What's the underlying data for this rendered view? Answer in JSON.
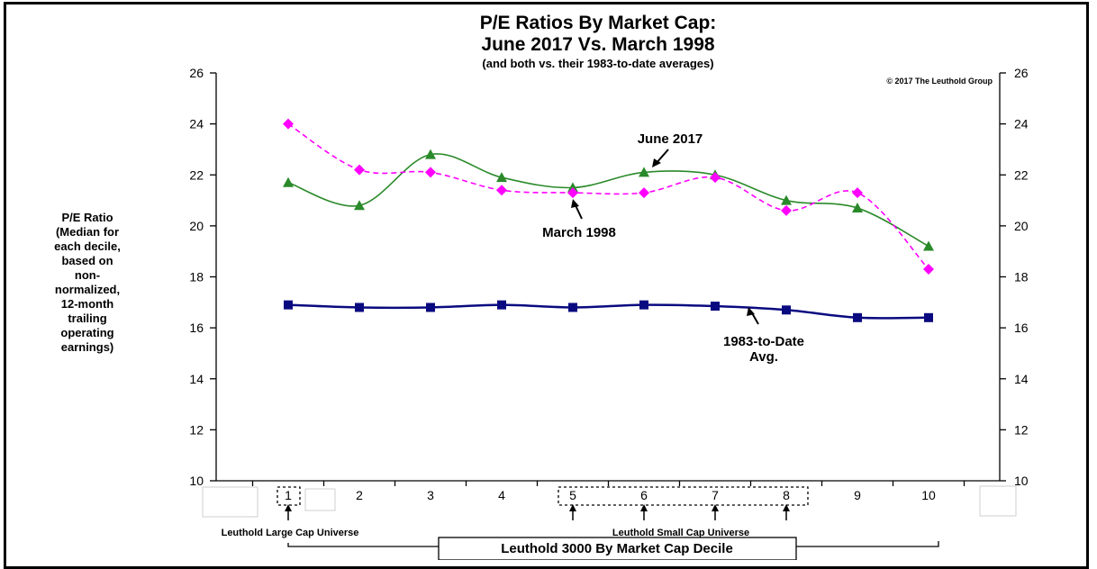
{
  "chart_data": {
    "type": "line",
    "title": "P/E Ratios By Market Cap:",
    "title_line2": "June 2017 Vs. March 1998",
    "subtitle": "(and both vs. their 1983-to-date averages)",
    "copyright": "© 2017 The Leuthold Group",
    "ylabel_lines": [
      "P/E Ratio",
      "(Median for",
      "each decile,",
      "based on",
      "non-",
      "normalized,",
      "12-month",
      "trailing",
      "operating",
      "earnings)"
    ],
    "xlabel": "Leuthold 3000 By Market Cap Decile",
    "categories": [
      "1",
      "2",
      "3",
      "4",
      "5",
      "6",
      "7",
      "8",
      "9",
      "10"
    ],
    "ylim": [
      10,
      26
    ],
    "yticks": [
      10,
      12,
      14,
      16,
      18,
      20,
      22,
      24,
      26
    ],
    "series": [
      {
        "name": "June 2017",
        "color": "#2a8a2a",
        "marker": "triangle",
        "style": "solid",
        "values": [
          21.7,
          20.8,
          22.8,
          21.9,
          21.5,
          22.1,
          22.0,
          21.0,
          20.7,
          19.2
        ]
      },
      {
        "name": "March 1998",
        "color": "#ff00ff",
        "marker": "diamond",
        "style": "dashed",
        "values": [
          24.0,
          22.2,
          22.1,
          21.4,
          21.3,
          21.3,
          21.9,
          20.6,
          21.3,
          18.3
        ]
      },
      {
        "name": "1983-to-Date Avg.",
        "color": "#0a0a80",
        "marker": "square",
        "style": "solid",
        "values": [
          16.9,
          16.8,
          16.8,
          16.9,
          16.8,
          16.9,
          16.85,
          16.7,
          16.4,
          16.4
        ]
      }
    ],
    "annotations": {
      "june": "June 2017",
      "march": "March 1998",
      "avg_line1": "1983-to-Date",
      "avg_line2": "Avg."
    },
    "large_cap_label": "Leuthold Large Cap Universe",
    "small_cap_label": "Leuthold Small Cap Universe",
    "grid": false,
    "legend": "none"
  }
}
